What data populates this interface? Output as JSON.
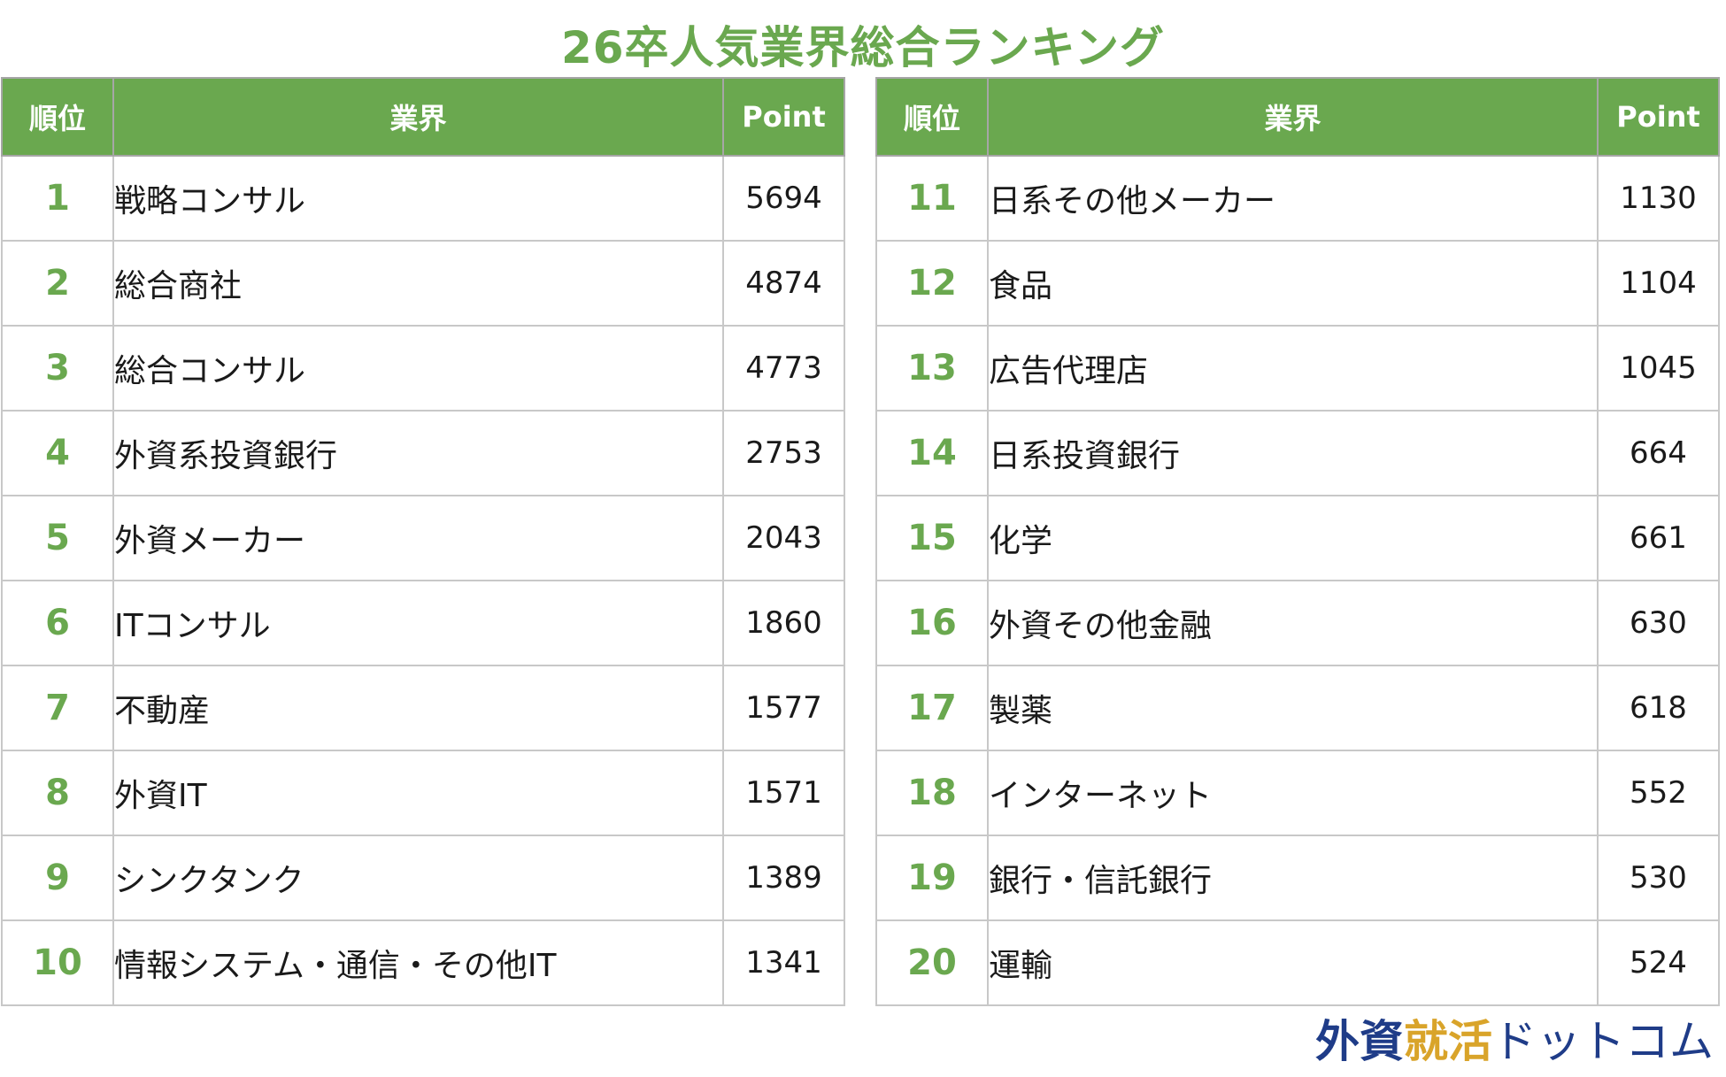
{
  "chart_data": {
    "type": "table",
    "title": "26卒人気業界総合ランキング",
    "columns": [
      "順位",
      "業界",
      "Point"
    ],
    "rows": [
      {
        "rank": "1",
        "industry": "戦略コンサル",
        "point": 5694
      },
      {
        "rank": "2",
        "industry": "総合商社",
        "point": 4874
      },
      {
        "rank": "3",
        "industry": "総合コンサル",
        "point": 4773
      },
      {
        "rank": "4",
        "industry": "外資系投資銀行",
        "point": 2753
      },
      {
        "rank": "5",
        "industry": "外資メーカー",
        "point": 2043
      },
      {
        "rank": "6",
        "industry": "ITコンサル",
        "point": 1860
      },
      {
        "rank": "7",
        "industry": "不動産",
        "point": 1577
      },
      {
        "rank": "8",
        "industry": "外資IT",
        "point": 1571
      },
      {
        "rank": "9",
        "industry": "シンクタンク",
        "point": 1389
      },
      {
        "rank": "10",
        "industry": "情報システム・通信・その他IT",
        "point": 1341
      },
      {
        "rank": "11",
        "industry": "日系その他メーカー",
        "point": 1130
      },
      {
        "rank": "12",
        "industry": "食品",
        "point": 1104
      },
      {
        "rank": "13",
        "industry": "広告代理店",
        "point": 1045
      },
      {
        "rank": "14",
        "industry": "日系投資銀行",
        "point": 664
      },
      {
        "rank": "15",
        "industry": "化学",
        "point": 661
      },
      {
        "rank": "16",
        "industry": "外資その他金融",
        "point": 630
      },
      {
        "rank": "17",
        "industry": "製薬",
        "point": 618
      },
      {
        "rank": "18",
        "industry": "インターネット",
        "point": 552
      },
      {
        "rank": "19",
        "industry": "銀行・信託銀行",
        "point": 530
      },
      {
        "rank": "20",
        "industry": "運輸",
        "point": 524
      }
    ]
  },
  "colors": {
    "header_bg": "#6aa84f",
    "rank_text": "#6aa84f",
    "title": "#6aa84f",
    "border": "#c8c8c8"
  },
  "logo": {
    "part1": "外資",
    "part2": "就活",
    "part3": "ドットコム"
  }
}
